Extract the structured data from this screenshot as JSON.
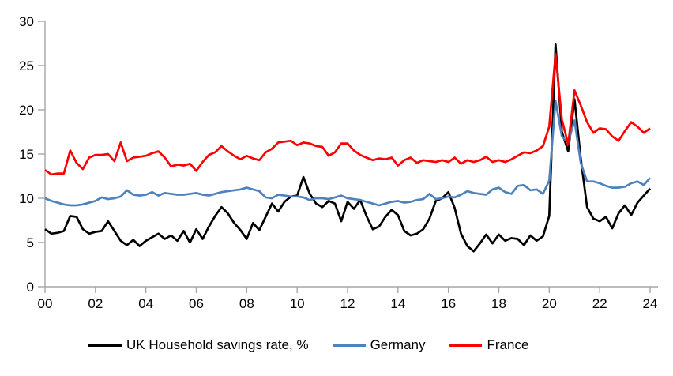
{
  "chart_data": {
    "type": "line",
    "title": "",
    "frequency": "quarterly",
    "x_start": "2000 Q1",
    "x_end": "2024 Q1",
    "grid": false,
    "legend_position": "bottom",
    "axis_color": "#a6a6a6",
    "background_color": "#ffffff",
    "y_axis": {
      "min": 0,
      "max": 30,
      "tick_interval": 5,
      "tick_labels": [
        "0",
        "5",
        "10",
        "15",
        "20",
        "25",
        "30"
      ]
    },
    "x_axis": {
      "start_year": 2000,
      "end_year": 2024,
      "tick_step_years": 2,
      "tick_labels": [
        "00",
        "02",
        "04",
        "06",
        "08",
        "10",
        "12",
        "14",
        "16",
        "18",
        "20",
        "22",
        "24"
      ]
    },
    "series": [
      {
        "name": "UK Household savings rate, %",
        "color": "#000000",
        "values": [
          6.5,
          6.0,
          6.1,
          6.3,
          8.0,
          7.9,
          6.5,
          6.0,
          6.2,
          6.3,
          7.4,
          6.3,
          5.2,
          4.7,
          5.3,
          4.6,
          5.2,
          5.6,
          6.0,
          5.4,
          5.8,
          5.2,
          6.3,
          5.0,
          6.5,
          5.4,
          6.8,
          8.0,
          9.0,
          8.3,
          7.2,
          6.4,
          5.4,
          7.2,
          6.4,
          7.9,
          9.4,
          8.5,
          9.6,
          10.2,
          10.3,
          12.4,
          10.5,
          9.4,
          9.0,
          9.7,
          9.4,
          7.4,
          9.6,
          8.8,
          9.8,
          8.0,
          6.5,
          6.8,
          7.9,
          8.7,
          8.1,
          6.3,
          5.8,
          6.0,
          6.5,
          7.7,
          9.7,
          10.0,
          10.7,
          8.9,
          6.0,
          4.6,
          4.0,
          4.9,
          5.9,
          4.9,
          5.9,
          5.2,
          5.5,
          5.4,
          4.7,
          5.8,
          5.2,
          5.7,
          8.0,
          27.4,
          17.5,
          15.3,
          21.2,
          14.5,
          9.0,
          7.7,
          7.4,
          7.9,
          6.6,
          8.3,
          9.2,
          8.1,
          9.5,
          10.3,
          11.1
        ]
      },
      {
        "name": "Germany",
        "color": "#4f81bd",
        "values": [
          10.0,
          9.7,
          9.5,
          9.3,
          9.2,
          9.2,
          9.3,
          9.5,
          9.7,
          10.1,
          9.9,
          10.0,
          10.2,
          10.9,
          10.4,
          10.3,
          10.4,
          10.7,
          10.3,
          10.6,
          10.5,
          10.4,
          10.4,
          10.5,
          10.6,
          10.4,
          10.3,
          10.5,
          10.7,
          10.8,
          10.9,
          11.0,
          11.2,
          11.0,
          10.8,
          10.1,
          10.0,
          10.4,
          10.3,
          10.2,
          10.2,
          10.1,
          9.8,
          10.0,
          10.0,
          9.9,
          10.1,
          10.3,
          10.0,
          9.9,
          9.8,
          9.6,
          9.4,
          9.2,
          9.4,
          9.6,
          9.7,
          9.5,
          9.6,
          9.8,
          9.9,
          10.5,
          9.9,
          10.0,
          10.2,
          10.1,
          10.4,
          10.8,
          10.6,
          10.5,
          10.4,
          11.0,
          11.2,
          10.7,
          10.5,
          11.4,
          11.5,
          10.9,
          11.0,
          10.5,
          12.0,
          21.0,
          17.0,
          16.3,
          18.8,
          14.0,
          11.9,
          11.9,
          11.7,
          11.4,
          11.2,
          11.2,
          11.3,
          11.7,
          11.9,
          11.5,
          12.3
        ]
      },
      {
        "name": "France",
        "color": "#ff0000",
        "values": [
          13.2,
          12.7,
          12.8,
          12.8,
          15.4,
          14.0,
          13.3,
          14.6,
          14.9,
          14.9,
          15.0,
          14.2,
          16.3,
          14.2,
          14.6,
          14.7,
          14.8,
          15.1,
          15.3,
          14.6,
          13.6,
          13.8,
          13.7,
          13.9,
          13.1,
          14.1,
          14.9,
          15.2,
          15.9,
          15.3,
          14.8,
          14.4,
          14.8,
          14.5,
          14.3,
          15.2,
          15.6,
          16.3,
          16.4,
          16.5,
          16.0,
          16.3,
          16.2,
          15.9,
          15.8,
          14.8,
          15.2,
          16.2,
          16.2,
          15.4,
          14.9,
          14.6,
          14.3,
          14.5,
          14.4,
          14.6,
          13.7,
          14.3,
          14.6,
          14.0,
          14.3,
          14.2,
          14.1,
          14.3,
          14.1,
          14.6,
          13.9,
          14.3,
          14.1,
          14.3,
          14.7,
          14.1,
          14.3,
          14.1,
          14.4,
          14.8,
          15.2,
          15.1,
          15.4,
          15.9,
          18.1,
          26.3,
          18.9,
          16.1,
          22.2,
          20.5,
          18.6,
          17.4,
          17.9,
          17.8,
          17.0,
          16.5,
          17.6,
          18.6,
          18.1,
          17.4,
          17.9
        ]
      }
    ]
  }
}
